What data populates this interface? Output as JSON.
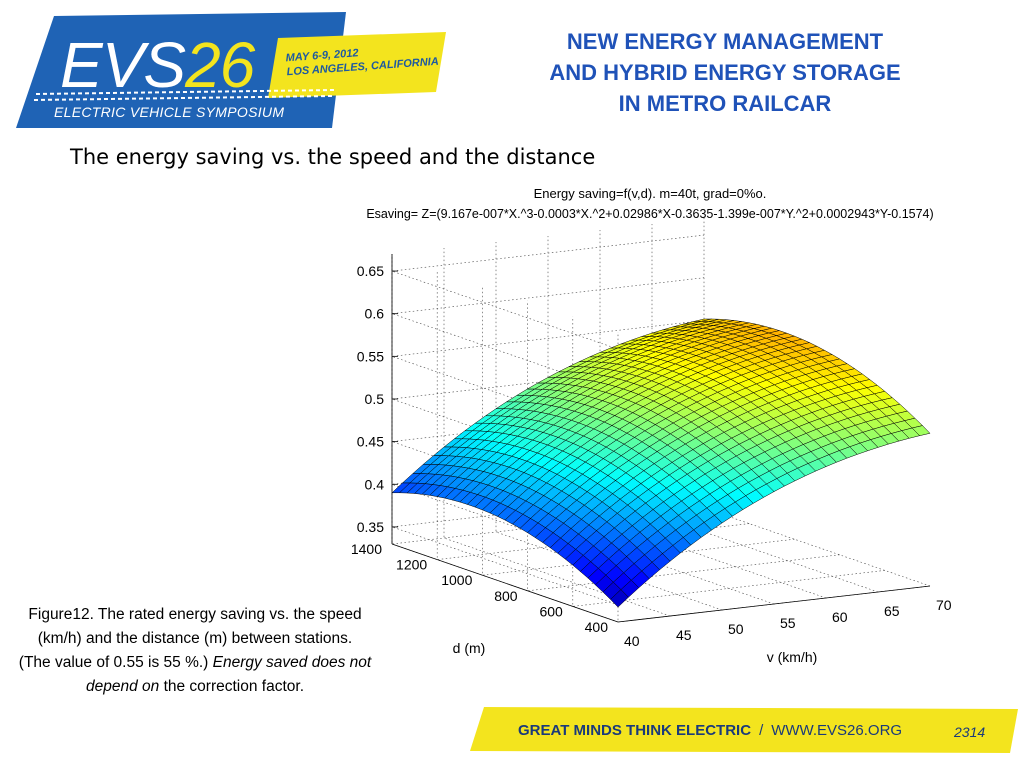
{
  "logo": {
    "big_text_main": "EVS",
    "big_text_num": "26",
    "date_line1": "MAY 6-9, 2012",
    "date_line2": "LOS ANGELES, CALIFORNIA",
    "subtitle": "ELECTRIC VEHICLE SYMPOSIUM"
  },
  "title": {
    "line1": "NEW ENERGY MANAGEMENT",
    "line2": "AND  HYBRID ENERGY STORAGE",
    "line3": "IN METRO RAILCAR"
  },
  "subtitle": "The energy saving vs. the speed and the distance",
  "caption": {
    "line1": "Figure12. The rated energy saving vs. the speed (km/h) and the distance (m) between stations.",
    "line2_a": "(The value of 0.55 is 55 %.) ",
    "line2_b": "Energy saved does not depend on",
    "line2_c": " the correction factor."
  },
  "footer": {
    "slogan": "GREAT MINDS THINK ELECTRIC",
    "sep": "/",
    "url": "WWW.EVS26.ORG",
    "page": "2314"
  },
  "colors": {
    "brand_blue": "#1f63b5",
    "brand_yellow": "#f3e41e",
    "title_blue": "#1f52b8"
  },
  "chart_data": {
    "type": "surface",
    "title_line1": "Energy saving=f(v,d). m=40t, grad=0%o.",
    "title_line2": "Esaving= Z=(9.167e-007*X.^3-0.0003*X.^2+0.02986*X-0.3635-1.399e-007*Y.^2+0.0002943*Y-0.1574)",
    "xlabel": "v (km/h)",
    "ylabel": "d (m)",
    "zlabel": "",
    "x_range": [
      40,
      70
    ],
    "y_range": [
      400,
      1400
    ],
    "z_range": [
      0.33,
      0.67
    ],
    "x_ticks": [
      40,
      45,
      50,
      55,
      60,
      65,
      70
    ],
    "y_ticks": [
      400,
      600,
      800,
      1000,
      1200,
      1400
    ],
    "z_ticks": [
      0.35,
      0.4,
      0.45,
      0.5,
      0.55,
      0.6,
      0.65
    ],
    "z_tick_labels": [
      "0.35",
      "0.4",
      "0.45",
      "0.5",
      "0.55",
      "0.6",
      "0.65"
    ],
    "coefficients": {
      "x3": 9.167e-07,
      "x2": -0.0003,
      "x1": 0.02986,
      "c0": -0.3635,
      "y2": -1.399e-07,
      "y1": 0.0002943,
      "c1": -0.1574
    },
    "grid": true,
    "colormap": "jet"
  }
}
